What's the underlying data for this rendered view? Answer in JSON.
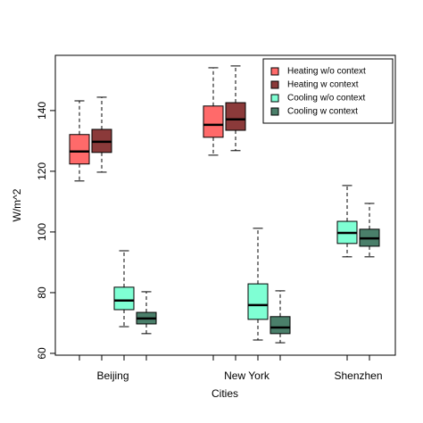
{
  "chart_data": {
    "type": "box",
    "x_label": "Cities",
    "y_label": "W/m^2",
    "categories": [
      "Beijing",
      "New York",
      "Shenzhen"
    ],
    "ylim": [
      59.4,
      158.2
    ],
    "yticks": [
      60,
      80,
      100,
      120,
      140
    ],
    "legend": "top-right",
    "series": [
      {
        "name": "Heating w/o context",
        "color": "#ff6a6a",
        "min": [
          116.8,
          125.3,
          null
        ],
        "q1": [
          122.4,
          131.2,
          null
        ],
        "median": [
          126.5,
          135.3,
          null
        ],
        "q3": [
          132.1,
          141.5,
          null
        ],
        "max": [
          143.2,
          154.1,
          null
        ]
      },
      {
        "name": "Heating w context",
        "color": "#8b3a3a",
        "min": [
          119.7,
          126.8,
          null
        ],
        "q1": [
          126.2,
          133.5,
          null
        ],
        "median": [
          129.7,
          137.1,
          null
        ],
        "q3": [
          133.8,
          142.6,
          null
        ],
        "max": [
          144.4,
          154.7,
          null
        ]
      },
      {
        "name": "Cooling w/o context",
        "color": "#7fffd4",
        "min": [
          68.8,
          64.4,
          91.8
        ],
        "q1": [
          74.4,
          71.2,
          96.2
        ],
        "median": [
          77.4,
          75.9,
          99.7
        ],
        "q3": [
          81.8,
          82.9,
          103.5
        ],
        "max": [
          93.8,
          101.2,
          115.3
        ]
      },
      {
        "name": "Cooling w context",
        "color": "#4a7f6a",
        "min": [
          66.5,
          63.5,
          91.8
        ],
        "q1": [
          69.7,
          66.5,
          95.3
        ],
        "median": [
          71.5,
          68.5,
          97.9
        ],
        "q3": [
          73.5,
          72.1,
          100.9
        ],
        "max": [
          80.3,
          80.6,
          109.4
        ]
      }
    ]
  }
}
